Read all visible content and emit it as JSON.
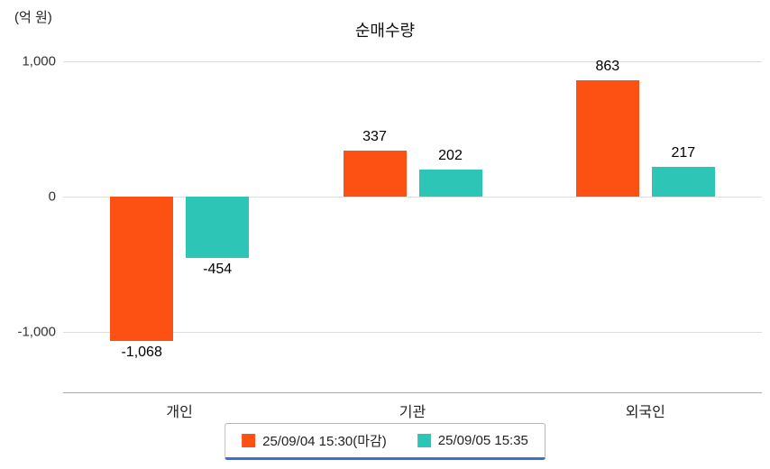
{
  "chart_data": {
    "type": "bar",
    "title": "순매수량",
    "unit_label": "(억 원)",
    "categories": [
      "개인",
      "기관",
      "외국인"
    ],
    "series": [
      {
        "name": "25/09/04 15:30(마감)",
        "color": "#fd5013",
        "values": [
          -1068,
          337,
          863
        ]
      },
      {
        "name": "25/09/05 15:35",
        "color": "#2cc5b6",
        "values": [
          -454,
          202,
          217
        ]
      }
    ],
    "value_labels": [
      [
        "-1,068",
        "337",
        "863"
      ],
      [
        "-454",
        "202",
        "217"
      ]
    ],
    "yticks": [
      {
        "label": "1,000",
        "value": 1000
      },
      {
        "label": "0",
        "value": 0
      },
      {
        "label": "-1,000",
        "value": -1000
      }
    ],
    "ylim": [
      -1450,
      1100
    ],
    "grid": true,
    "legend_position": "bottom"
  }
}
